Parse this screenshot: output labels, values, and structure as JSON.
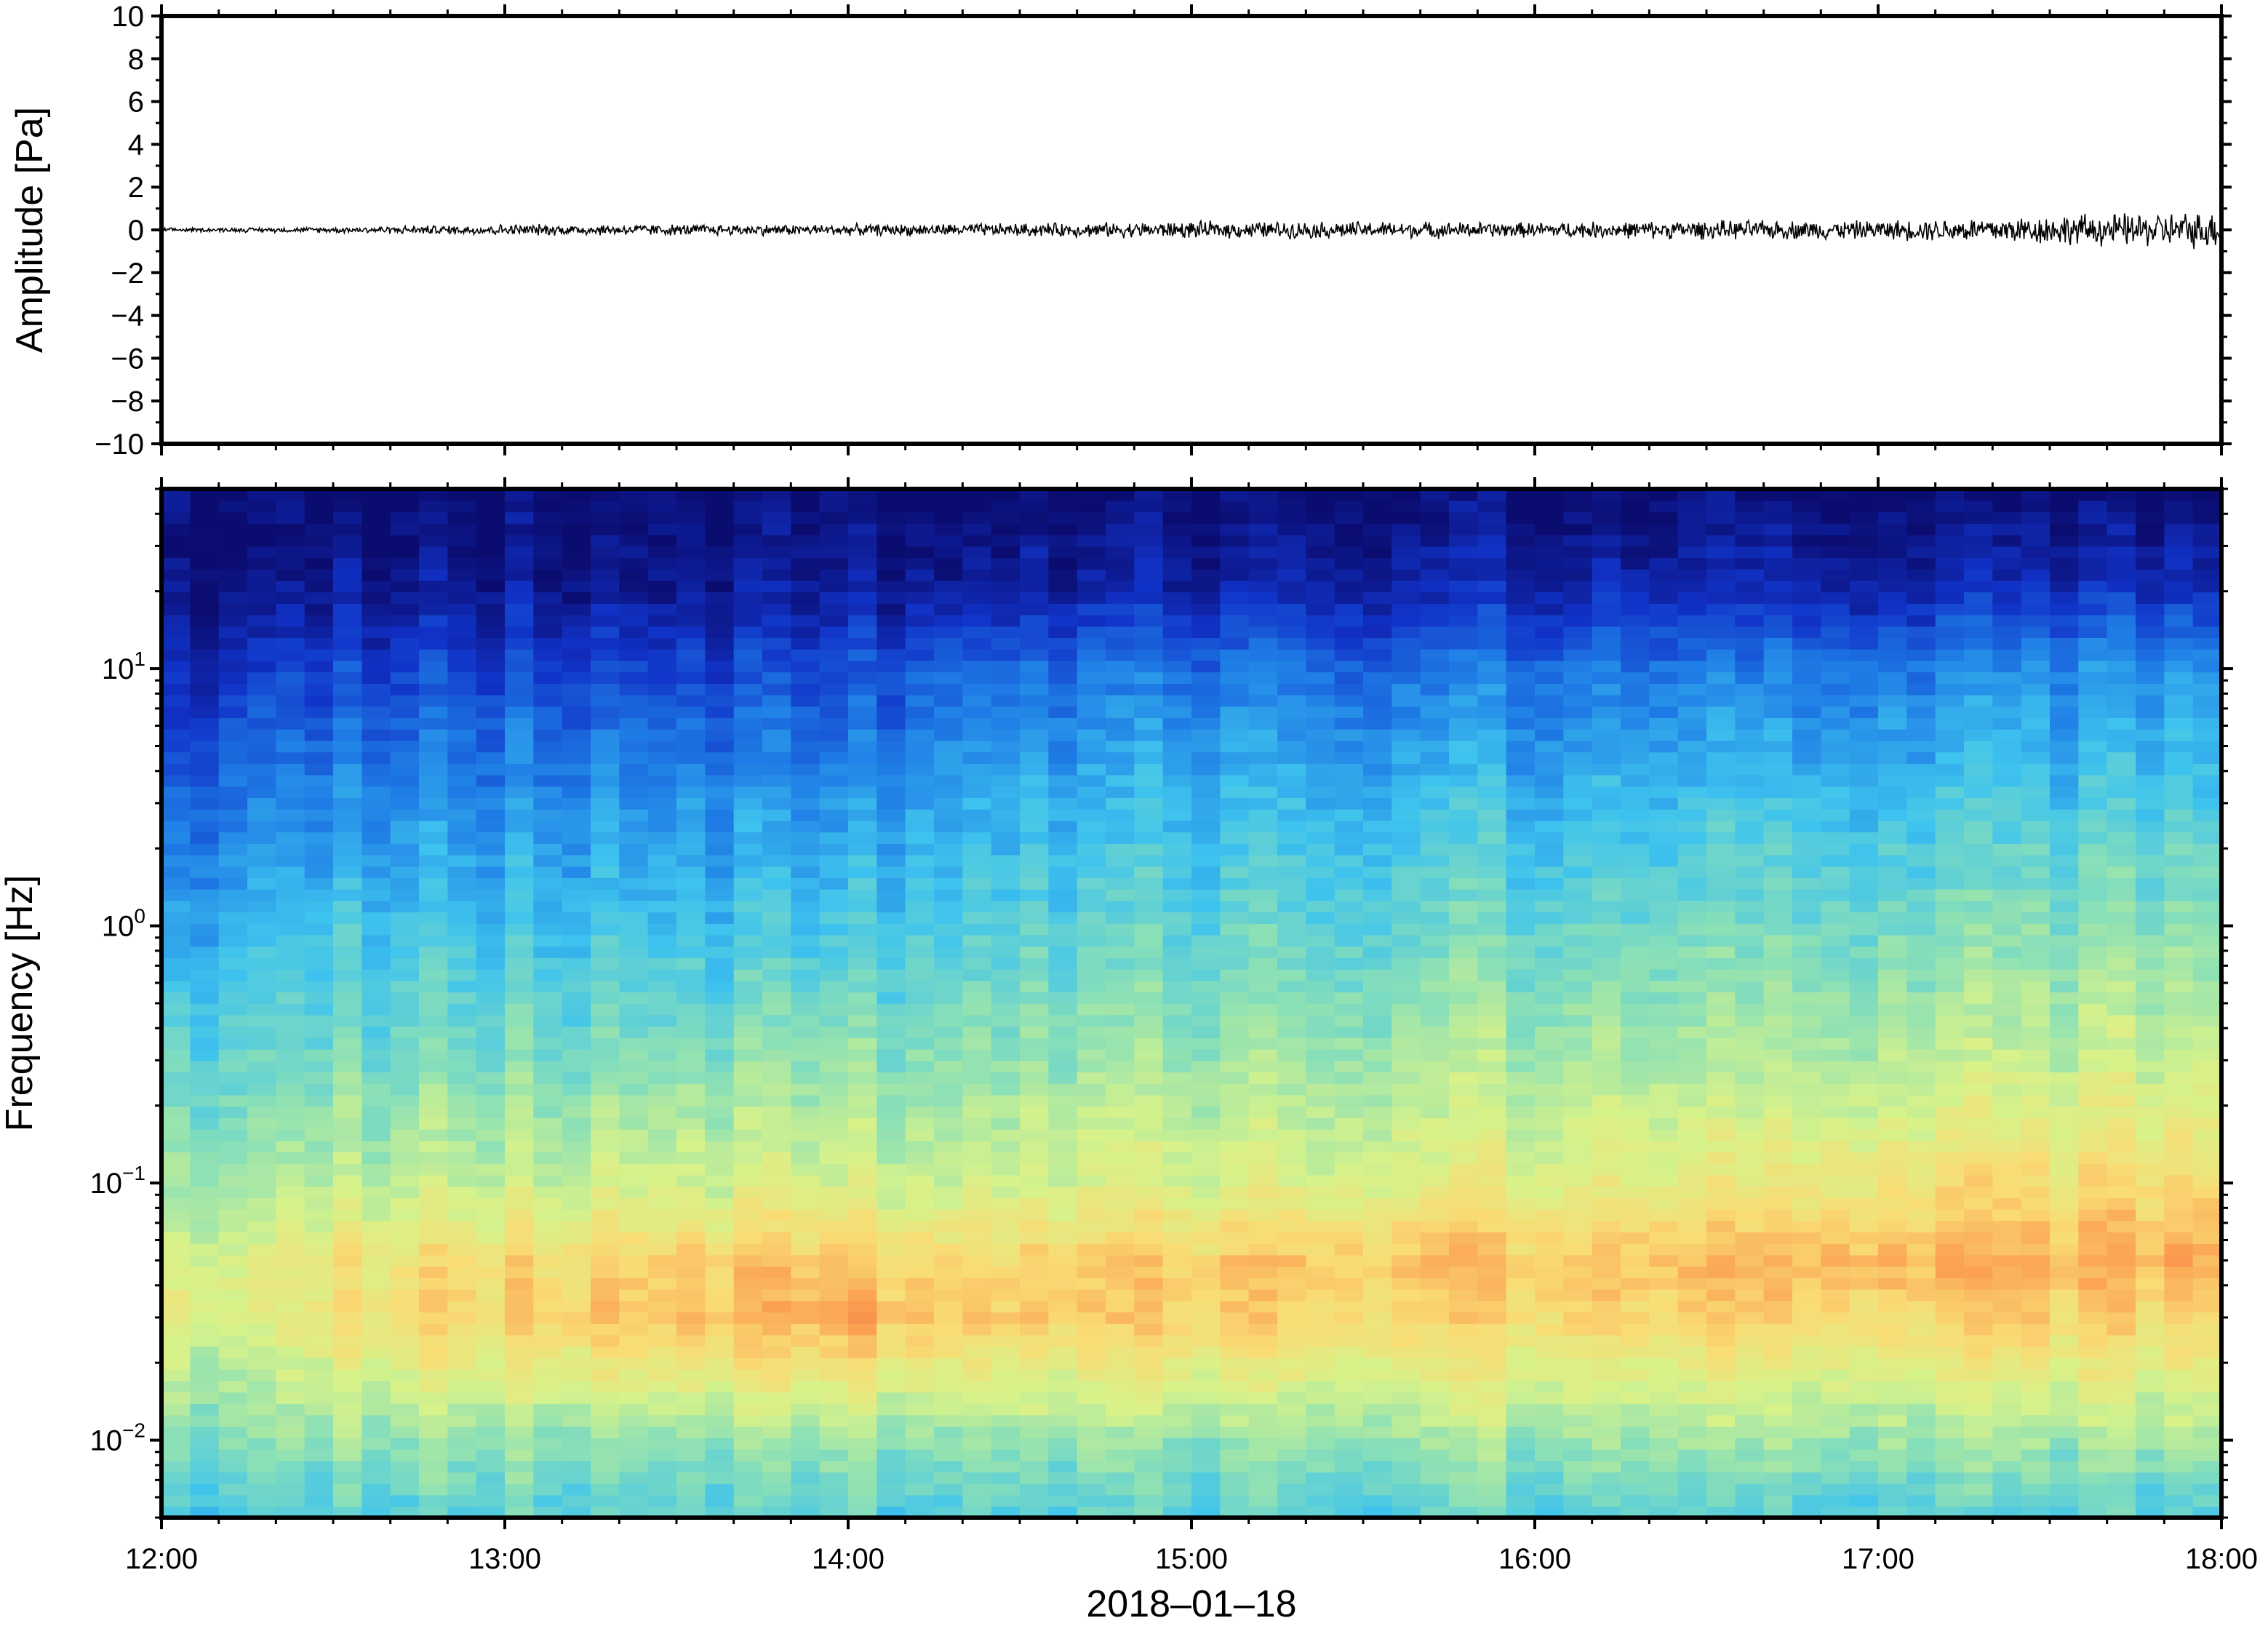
{
  "chart_data": [
    {
      "type": "line",
      "ylabel": "Amplitude [Pa]",
      "ylim": [
        -10,
        10
      ],
      "y_ticks": [
        10,
        8,
        6,
        4,
        2,
        0,
        -2,
        -4,
        -6,
        -8,
        -10
      ],
      "y_tick_labels": [
        "10",
        "8",
        "6",
        "4",
        "2",
        "0",
        "−2",
        "−4",
        "−6",
        "−8",
        "−10"
      ],
      "x_ticks": [
        "12:00",
        "13:00",
        "14:00",
        "15:00",
        "16:00",
        "17:00",
        "18:00"
      ],
      "xlim": [
        "12:00",
        "18:00"
      ],
      "series": [
        {
          "x": [
            "12:00",
            "12:30",
            "13:00",
            "13:30",
            "14:00",
            "14:30",
            "15:00",
            "15:30",
            "16:00",
            "16:30",
            "17:00",
            "17:30",
            "18:00"
          ],
          "y_envelope_max": [
            0.1,
            0.15,
            0.3,
            0.3,
            0.3,
            0.35,
            0.45,
            0.45,
            0.4,
            0.5,
            0.5,
            0.8,
            1.0
          ],
          "y_envelope_min": [
            -0.1,
            -0.15,
            -0.3,
            -0.3,
            -0.3,
            -0.35,
            -0.45,
            -0.45,
            -0.4,
            -0.5,
            -0.5,
            -0.8,
            -1.0
          ],
          "color": "#000000"
        }
      ]
    },
    {
      "type": "heatmap",
      "ylabel": "Frequency [Hz]",
      "xlabel": "2018–01–18",
      "y_scale": "log",
      "ylim": [
        0.005,
        50
      ],
      "y_ticks": [
        0.01,
        0.1,
        1,
        10
      ],
      "y_tick_labels": [
        {
          "base": "10",
          "exp": "−2"
        },
        {
          "base": "10",
          "exp": "−1"
        },
        {
          "base": "10",
          "exp": "0"
        },
        {
          "base": "10",
          "exp": "1"
        }
      ],
      "x_ticks": [
        "12:00",
        "13:00",
        "14:00",
        "15:00",
        "16:00",
        "17:00",
        "18:00"
      ],
      "xlim": [
        "12:00",
        "18:00"
      ],
      "colormap": [
        "#0b0c70",
        "#1133c8",
        "#1f7ee6",
        "#3ec3ee",
        "#8be0b6",
        "#d7f28a",
        "#f9dc74",
        "#fba050",
        "#e6503c"
      ],
      "time_hours": [
        12,
        12.25,
        12.5,
        13,
        13.5,
        14,
        14.3,
        14.5,
        15,
        15.5,
        16,
        16.5,
        17,
        17.5,
        18
      ],
      "freq_hz": [
        0.005,
        0.01,
        0.03,
        0.05,
        0.1,
        0.3,
        1,
        3,
        10,
        20,
        50
      ],
      "power_rel": [
        [
          0.38,
          0.48,
          0.66,
          0.62,
          0.52,
          0.42,
          0.3,
          0.18,
          0.06,
          0.01,
          0.0
        ],
        [
          0.4,
          0.5,
          0.64,
          0.64,
          0.54,
          0.46,
          0.36,
          0.26,
          0.14,
          0.04,
          0.0
        ],
        [
          0.4,
          0.52,
          0.72,
          0.7,
          0.58,
          0.48,
          0.38,
          0.28,
          0.15,
          0.05,
          0.0
        ],
        [
          0.42,
          0.52,
          0.78,
          0.74,
          0.6,
          0.48,
          0.38,
          0.28,
          0.16,
          0.05,
          0.0
        ],
        [
          0.42,
          0.52,
          0.8,
          0.78,
          0.62,
          0.5,
          0.38,
          0.3,
          0.16,
          0.05,
          0.0
        ],
        [
          0.42,
          0.52,
          0.84,
          0.78,
          0.62,
          0.5,
          0.38,
          0.28,
          0.15,
          0.05,
          0.0
        ],
        [
          0.42,
          0.52,
          0.8,
          0.76,
          0.62,
          0.52,
          0.42,
          0.34,
          0.22,
          0.07,
          0.0
        ],
        [
          0.42,
          0.52,
          0.78,
          0.76,
          0.62,
          0.52,
          0.42,
          0.34,
          0.22,
          0.07,
          0.0
        ],
        [
          0.42,
          0.52,
          0.78,
          0.78,
          0.64,
          0.54,
          0.44,
          0.36,
          0.24,
          0.08,
          0.0
        ],
        [
          0.42,
          0.52,
          0.76,
          0.8,
          0.64,
          0.54,
          0.44,
          0.36,
          0.22,
          0.08,
          0.0
        ],
        [
          0.42,
          0.54,
          0.76,
          0.8,
          0.66,
          0.56,
          0.46,
          0.36,
          0.24,
          0.09,
          0.0
        ],
        [
          0.42,
          0.54,
          0.76,
          0.82,
          0.68,
          0.56,
          0.46,
          0.38,
          0.24,
          0.1,
          0.0
        ],
        [
          0.42,
          0.54,
          0.76,
          0.84,
          0.72,
          0.58,
          0.48,
          0.38,
          0.26,
          0.1,
          0.0
        ],
        [
          0.42,
          0.54,
          0.78,
          0.84,
          0.74,
          0.6,
          0.5,
          0.4,
          0.28,
          0.11,
          0.0
        ],
        [
          0.42,
          0.56,
          0.76,
          0.86,
          0.76,
          0.62,
          0.52,
          0.42,
          0.3,
          0.12,
          0.0
        ]
      ]
    }
  ]
}
